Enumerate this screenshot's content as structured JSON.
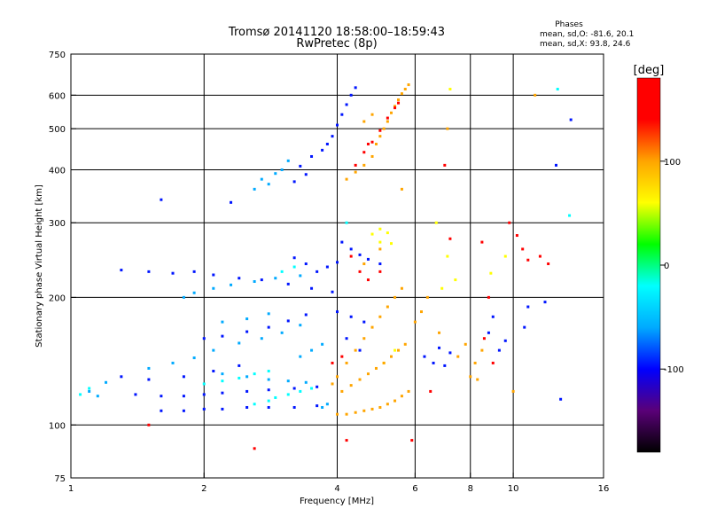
{
  "chart_data": {
    "type": "scatter",
    "title": "Tromsø 20141120 18:58:00–18:59:43",
    "subtitle": "RwPretec (8p)",
    "phase_header": "Phases",
    "phase_o": "mean, sd,O: -81.6, 20.1",
    "phase_x": "mean, sd,X:  93.8, 24.6",
    "xlabel": "Frequency [MHz]",
    "ylabel": "Stationary phase Virtual Height [km]",
    "x_scale": "log",
    "y_scale": "log",
    "xlim": [
      1,
      16
    ],
    "ylim": [
      75,
      750
    ],
    "x_ticks": [
      {
        "value": 1,
        "label": "1"
      },
      {
        "value": 2,
        "label": "2"
      },
      {
        "value": 4,
        "label": "4"
      },
      {
        "value": 6,
        "label": "6"
      },
      {
        "value": 8,
        "label": "8"
      },
      {
        "value": 10,
        "label": "10"
      },
      {
        "value": 16,
        "label": "16"
      }
    ],
    "x_gridlines": [
      2,
      4,
      6,
      8,
      10
    ],
    "y_ticks": [
      {
        "value": 75,
        "label": "75"
      },
      {
        "value": 100,
        "label": "100"
      },
      {
        "value": 200,
        "label": "200"
      },
      {
        "value": 300,
        "label": "300"
      },
      {
        "value": 400,
        "label": "400"
      },
      {
        "value": 500,
        "label": "500"
      },
      {
        "value": 600,
        "label": "600"
      },
      {
        "value": 750,
        "label": "750"
      }
    ],
    "y_gridlines": [
      100,
      200,
      300,
      400,
      500,
      600
    ],
    "grid": true,
    "colorbar": {
      "label": "[deg]",
      "range": [
        -180,
        180
      ],
      "ticks": [
        {
          "value": 100,
          "label": "100"
        },
        {
          "value": 0,
          "label": "0"
        },
        {
          "value": -100,
          "label": "-100"
        }
      ],
      "colors": [
        "#000000",
        "#5a0078",
        "#0000ff",
        "#00aaff",
        "#00ffff",
        "#00ff00",
        "#ffff00",
        "#ffa500",
        "#ff0000",
        "#ff0000"
      ]
    },
    "series": [
      {
        "phase": -95,
        "points": [
          [
            1.6,
            108
          ],
          [
            1.8,
            108
          ],
          [
            2.0,
            109
          ],
          [
            2.2,
            109
          ],
          [
            2.5,
            110
          ],
          [
            2.8,
            110
          ],
          [
            3.2,
            110
          ],
          [
            3.6,
            111
          ],
          [
            1.4,
            118
          ],
          [
            1.6,
            117
          ],
          [
            1.8,
            117
          ],
          [
            2.0,
            118
          ],
          [
            2.2,
            119
          ],
          [
            2.5,
            120
          ],
          [
            2.8,
            121
          ],
          [
            3.2,
            122
          ],
          [
            3.6,
            123
          ],
          [
            1.3,
            130
          ],
          [
            1.5,
            128
          ],
          [
            1.8,
            130
          ],
          [
            2.1,
            134
          ],
          [
            2.4,
            138
          ],
          [
            1.3,
            232
          ],
          [
            1.5,
            230
          ],
          [
            1.7,
            228
          ],
          [
            1.9,
            230
          ],
          [
            2.1,
            226
          ],
          [
            2.4,
            222
          ],
          [
            2.7,
            220
          ],
          [
            3.1,
            215
          ],
          [
            3.5,
            210
          ],
          [
            3.9,
            206
          ],
          [
            2.0,
            160
          ],
          [
            2.2,
            162
          ],
          [
            2.5,
            166
          ],
          [
            2.8,
            170
          ],
          [
            3.1,
            176
          ],
          [
            3.4,
            182
          ],
          [
            4.0,
            185
          ],
          [
            4.3,
            180
          ],
          [
            4.6,
            175
          ],
          [
            4.2,
            160
          ],
          [
            4.5,
            150
          ],
          [
            3.3,
            408
          ],
          [
            3.5,
            430
          ],
          [
            3.7,
            445
          ],
          [
            3.8,
            460
          ],
          [
            3.9,
            480
          ],
          [
            4.0,
            510
          ],
          [
            4.1,
            540
          ],
          [
            4.2,
            570
          ],
          [
            4.3,
            600
          ],
          [
            4.4,
            625
          ],
          [
            3.2,
            375
          ],
          [
            3.4,
            390
          ],
          [
            4.1,
            270
          ],
          [
            4.3,
            260
          ],
          [
            4.5,
            252
          ],
          [
            4.7,
            246
          ],
          [
            5.0,
            240
          ],
          [
            3.6,
            230
          ],
          [
            3.8,
            236
          ],
          [
            4.0,
            242
          ],
          [
            3.2,
            248
          ],
          [
            3.4,
            240
          ],
          [
            6.3,
            145
          ],
          [
            6.6,
            140
          ],
          [
            7.0,
            138
          ],
          [
            6.8,
            152
          ],
          [
            7.2,
            148
          ],
          [
            9.3,
            150
          ],
          [
            9.6,
            158
          ],
          [
            8.8,
            165
          ],
          [
            9.0,
            180
          ],
          [
            10.6,
            170
          ],
          [
            10.8,
            190
          ],
          [
            11.8,
            195
          ],
          [
            12.5,
            410
          ],
          [
            13.5,
            525
          ],
          [
            12.8,
            115
          ],
          [
            2.3,
            335
          ],
          [
            1.6,
            340
          ]
        ]
      },
      {
        "phase": -60,
        "points": [
          [
            1.8,
            200
          ],
          [
            1.9,
            205
          ],
          [
            2.1,
            210
          ],
          [
            2.3,
            214
          ],
          [
            2.6,
            218
          ],
          [
            2.9,
            222
          ],
          [
            3.3,
            225
          ],
          [
            1.5,
            136
          ],
          [
            1.7,
            140
          ],
          [
            1.9,
            144
          ],
          [
            2.1,
            150
          ],
          [
            2.4,
            156
          ],
          [
            2.7,
            160
          ],
          [
            3.0,
            165
          ],
          [
            3.3,
            172
          ],
          [
            2.2,
            132
          ],
          [
            2.5,
            130
          ],
          [
            2.8,
            128
          ],
          [
            3.1,
            127
          ],
          [
            3.4,
            126
          ],
          [
            2.2,
            175
          ],
          [
            2.5,
            178
          ],
          [
            2.8,
            183
          ],
          [
            2.8,
            370
          ],
          [
            2.9,
            392
          ],
          [
            3.0,
            400
          ],
          [
            3.1,
            420
          ],
          [
            2.6,
            360
          ],
          [
            2.7,
            380
          ],
          [
            3.7,
            110
          ],
          [
            3.8,
            112
          ],
          [
            3.3,
            145
          ],
          [
            3.5,
            150
          ],
          [
            3.7,
            155
          ],
          [
            1.1,
            120
          ],
          [
            1.15,
            117
          ],
          [
            1.2,
            126
          ]
        ]
      },
      {
        "phase": -20,
        "points": [
          [
            2.9,
            116
          ],
          [
            3.1,
            118
          ],
          [
            3.3,
            120
          ],
          [
            3.5,
            122
          ],
          [
            2.6,
            112
          ],
          [
            2.8,
            114
          ],
          [
            2.0,
            125
          ],
          [
            2.2,
            127
          ],
          [
            2.4,
            129
          ],
          [
            2.6,
            132
          ],
          [
            2.8,
            134
          ],
          [
            1.05,
            118
          ],
          [
            1.1,
            122
          ],
          [
            3.0,
            230
          ],
          [
            3.2,
            236
          ],
          [
            4.2,
            300
          ],
          [
            12.6,
            620
          ],
          [
            13.4,
            312
          ]
        ]
      },
      {
        "phase": 60,
        "points": [
          [
            4.8,
            282
          ],
          [
            5.0,
            290
          ],
          [
            5.2,
            284
          ],
          [
            5.0,
            270
          ],
          [
            5.3,
            268
          ],
          [
            6.7,
            300
          ],
          [
            7.1,
            250
          ],
          [
            6.9,
            210
          ],
          [
            7.4,
            220
          ],
          [
            8.9,
            228
          ],
          [
            7.2,
            620
          ],
          [
            9.6,
            250
          ],
          [
            5.1,
            140
          ],
          [
            5.4,
            150
          ]
        ]
      },
      {
        "phase": 100,
        "points": [
          [
            4.0,
            106
          ],
          [
            4.2,
            106
          ],
          [
            4.4,
            107
          ],
          [
            4.6,
            108
          ],
          [
            4.8,
            109
          ],
          [
            5.0,
            110
          ],
          [
            5.2,
            112
          ],
          [
            5.4,
            114
          ],
          [
            5.6,
            117
          ],
          [
            5.8,
            120
          ],
          [
            4.1,
            120
          ],
          [
            4.3,
            124
          ],
          [
            4.5,
            128
          ],
          [
            4.7,
            132
          ],
          [
            4.9,
            136
          ],
          [
            5.1,
            140
          ],
          [
            5.3,
            145
          ],
          [
            5.5,
            150
          ],
          [
            5.7,
            155
          ],
          [
            4.4,
            150
          ],
          [
            4.6,
            160
          ],
          [
            4.8,
            170
          ],
          [
            5.0,
            180
          ],
          [
            5.2,
            190
          ],
          [
            5.4,
            200
          ],
          [
            5.6,
            210
          ],
          [
            4.2,
            140
          ],
          [
            4.0,
            130
          ],
          [
            3.9,
            125
          ],
          [
            4.6,
            240
          ],
          [
            5.0,
            260
          ],
          [
            6.0,
            175
          ],
          [
            6.2,
            185
          ],
          [
            6.4,
            200
          ],
          [
            6.8,
            165
          ],
          [
            7.5,
            145
          ],
          [
            7.8,
            155
          ],
          [
            8.2,
            140
          ],
          [
            8.5,
            150
          ],
          [
            8.0,
            130
          ],
          [
            8.3,
            128
          ],
          [
            4.2,
            380
          ],
          [
            4.4,
            395
          ],
          [
            4.6,
            410
          ],
          [
            4.8,
            430
          ],
          [
            4.9,
            460
          ],
          [
            5.0,
            480
          ],
          [
            5.1,
            500
          ],
          [
            5.2,
            520
          ],
          [
            5.3,
            545
          ],
          [
            5.4,
            565
          ],
          [
            5.5,
            585
          ],
          [
            5.6,
            605
          ],
          [
            5.7,
            620
          ],
          [
            5.8,
            635
          ],
          [
            4.6,
            520
          ],
          [
            4.8,
            540
          ],
          [
            5.6,
            360
          ],
          [
            7.1,
            500
          ],
          [
            10.0,
            120
          ],
          [
            11.2,
            600
          ]
        ]
      },
      {
        "phase": 140,
        "points": [
          [
            4.4,
            410
          ],
          [
            4.6,
            440
          ],
          [
            4.7,
            460
          ],
          [
            4.8,
            465
          ],
          [
            5.0,
            495
          ],
          [
            5.2,
            530
          ],
          [
            5.4,
            560
          ],
          [
            5.5,
            575
          ],
          [
            3.9,
            140
          ],
          [
            4.1,
            145
          ],
          [
            4.3,
            250
          ],
          [
            4.5,
            230
          ],
          [
            4.7,
            220
          ],
          [
            5.0,
            230
          ],
          [
            7.0,
            410
          ],
          [
            7.2,
            275
          ],
          [
            8.5,
            270
          ],
          [
            9.8,
            300
          ],
          [
            10.2,
            280
          ],
          [
            10.5,
            260
          ],
          [
            10.8,
            245
          ],
          [
            9.0,
            140
          ],
          [
            8.6,
            160
          ],
          [
            6.5,
            120
          ],
          [
            5.9,
            92
          ],
          [
            4.2,
            92
          ],
          [
            1.5,
            100
          ],
          [
            2.6,
            88
          ],
          [
            11.5,
            250
          ],
          [
            12.0,
            240
          ],
          [
            8.8,
            200
          ]
        ]
      }
    ]
  }
}
